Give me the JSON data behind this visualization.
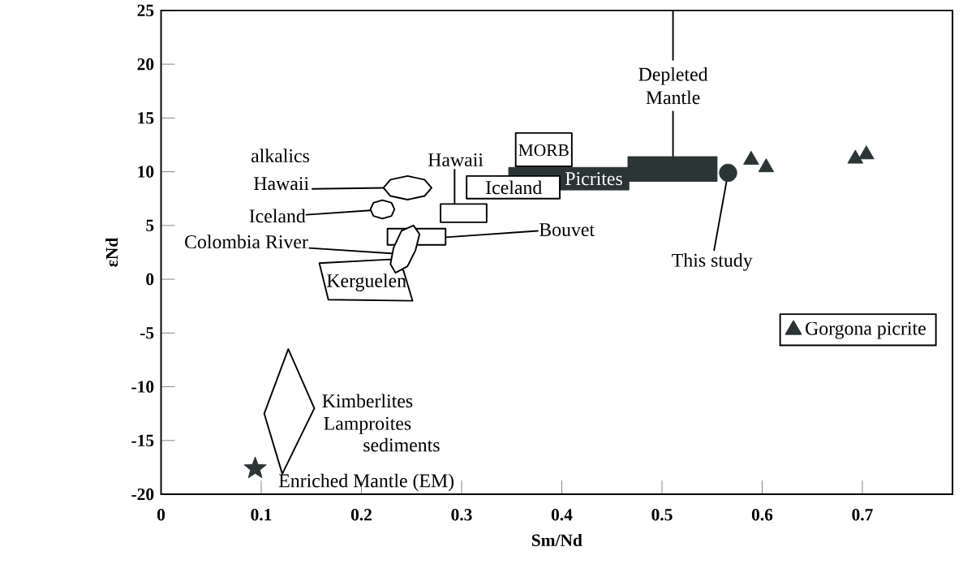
{
  "chart_data": {
    "type": "scatter",
    "xlabel": "Sm/Nd",
    "ylabel": "εNd",
    "xlim": [
      0,
      0.79
    ],
    "ylim": [
      -20,
      25
    ],
    "xticks": [
      0,
      0.1,
      0.2,
      0.3,
      0.4,
      0.5,
      0.6,
      0.7
    ],
    "yticks": [
      -20,
      -15,
      -10,
      -5,
      0,
      5,
      10,
      15,
      20,
      25
    ],
    "legend": "right",
    "series": [
      {
        "type": "area",
        "color": "#2b3535",
        "x": [
          0.347,
          0.467,
          0.467,
          0.398,
          0.398,
          0.347,
          0.347
        ],
        "values": [
          10.4,
          10.4,
          8.3,
          8.3,
          9.6,
          9.6,
          10.4
        ]
      },
      {
        "type": "area",
        "color": "#2b3535",
        "x": [
          0.466,
          0.555,
          0.555,
          0.466,
          0.466
        ],
        "values": [
          11.4,
          11.4,
          9.1,
          9.1,
          11.4
        ]
      },
      {
        "type": "area",
        "color": "#ffffff",
        "x": [
          0.354,
          0.41,
          0.41,
          0.354,
          0.354
        ],
        "values": [
          13.6,
          13.6,
          10.5,
          10.5,
          13.6
        ]
      },
      {
        "type": "area",
        "color": "#ffffff",
        "x": [
          0.305,
          0.398,
          0.398,
          0.305,
          0.305
        ],
        "values": [
          9.6,
          9.6,
          7.5,
          7.5,
          9.6
        ]
      },
      {
        "type": "area",
        "color": "#ffffff",
        "x": [
          0.279,
          0.325,
          0.325,
          0.279,
          0.279
        ],
        "values": [
          7.0,
          7.0,
          5.3,
          5.3,
          7.0
        ]
      },
      {
        "type": "area",
        "color": "#ffffff",
        "x": [
          0.158,
          0.229,
          0.242,
          0.251,
          0.167,
          0.158
        ],
        "values": [
          1.5,
          1.85,
          0.8,
          -2.0,
          -1.9,
          1.5
        ]
      },
      {
        "type": "area",
        "color": "#ffffff",
        "x": [
          0.226,
          0.284,
          0.284,
          0.226,
          0.226
        ],
        "values": [
          4.7,
          4.7,
          3.2,
          3.2,
          4.7
        ]
      },
      {
        "type": "area",
        "color": "#ffffff",
        "x": [
          0.252,
          0.258,
          0.254,
          0.246,
          0.234,
          0.229,
          0.232,
          0.24,
          0.252
        ],
        "values": [
          5.0,
          4.2,
          2.7,
          1.2,
          0.6,
          1.4,
          2.9,
          4.5,
          5.0
        ]
      },
      {
        "type": "area",
        "color": "#ffffff",
        "x": [
          0.27,
          0.263,
          0.246,
          0.229,
          0.222,
          0.229,
          0.246,
          0.263,
          0.27
        ],
        "values": [
          8.5,
          9.26,
          9.6,
          9.26,
          8.5,
          7.74,
          7.4,
          7.74,
          8.5
        ]
      },
      {
        "type": "area",
        "color": "#ffffff",
        "x": [
          0.233,
          0.23,
          0.221,
          0.212,
          0.209,
          0.212,
          0.221,
          0.23,
          0.233
        ],
        "values": [
          6.5,
          7.11,
          7.36,
          7.11,
          6.5,
          5.89,
          5.64,
          5.89,
          6.5
        ]
      },
      {
        "type": "area",
        "color": "#ffffff",
        "x": [
          0.127,
          0.153,
          0.121,
          0.103,
          0.127
        ],
        "values": [
          -6.5,
          -12.0,
          -18.1,
          -12.5,
          -6.5
        ]
      },
      {
        "type": "scatter",
        "marker": "circle",
        "color": "#2b3535",
        "x": [
          0.566
        ],
        "values": [
          9.9
        ]
      },
      {
        "type": "scatter",
        "marker": "triangle",
        "name": "Gorgona picrite",
        "color": "#2b3535",
        "x": [
          0.589,
          0.604,
          0.693,
          0.704
        ],
        "values": [
          11.1,
          10.4,
          11.2,
          11.6
        ]
      },
      {
        "type": "scatter",
        "marker": "star",
        "color": "#2b3535",
        "x": [
          0.094
        ],
        "values": [
          -17.6
        ]
      }
    ],
    "annotations": [
      "alkalics",
      "Hawaii",
      "Iceland",
      "Colombia River",
      "Kerguelen",
      "Bouvet",
      {
        "text": "Hawaii",
        "x": 0.293,
        "y": 7.0
      },
      "Iceland",
      "MORB",
      "Picrites",
      {
        "text": "Depleted Mantle",
        "x": 0.511,
        "y": 11.4
      },
      {
        "text": "This study",
        "x": 0.566,
        "y": 9.9
      },
      "Kimberlites",
      "Lamproites",
      "sediments",
      "Enriched Mantle (EM)"
    ]
  }
}
